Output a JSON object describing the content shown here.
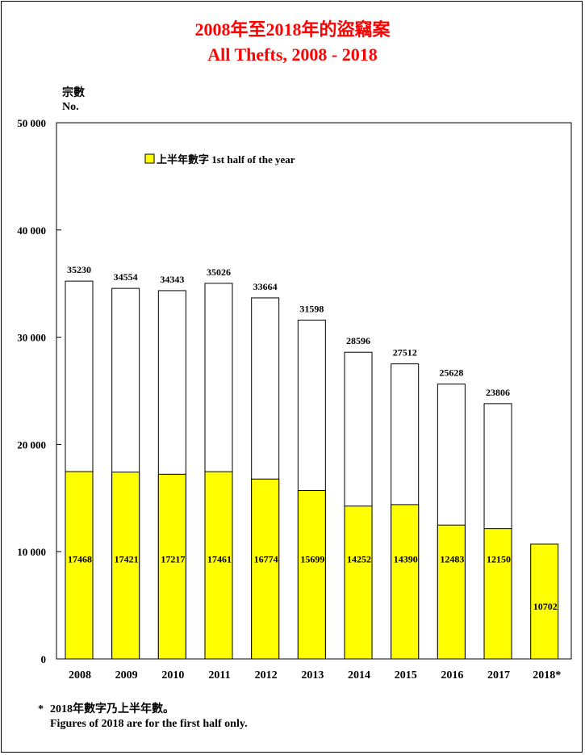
{
  "title_zh": "2008年至2018年的盜竊案",
  "title_en": "All Thefts, 2008 - 2018",
  "ylabel_zh": "宗數",
  "ylabel_en": "No.",
  "legend_label": "上半年數字 1st half of the year",
  "footnote_mark": "*",
  "footnote_zh": "2018年數字乃上半年數。",
  "footnote_en": "Figures of 2018 are for the first half only.",
  "colors": {
    "first_half": "#ffff00",
    "full_year": "#ffffff",
    "title": "#ff0000"
  },
  "chart_data": {
    "type": "bar",
    "categories": [
      "2008",
      "2009",
      "2010",
      "2011",
      "2012",
      "2013",
      "2014",
      "2015",
      "2016",
      "2017",
      "2018*"
    ],
    "series": [
      {
        "name": "上半年數字 1st half of the year",
        "values": [
          17468,
          17421,
          17217,
          17461,
          16774,
          15699,
          14252,
          14390,
          12483,
          12150,
          10702
        ]
      },
      {
        "values": [
          35230,
          34554,
          34343,
          35026,
          33664,
          31598,
          28596,
          27512,
          25628,
          23806,
          null
        ]
      }
    ],
    "ylim": [
      0,
      50000
    ],
    "yticks": [
      0,
      10000,
      20000,
      30000,
      40000,
      50000
    ],
    "ytick_labels": [
      "0",
      "10 000",
      "20 000",
      "30 000",
      "40 000",
      "50 000"
    ],
    "grid": false,
    "legend_position": "top-left"
  }
}
